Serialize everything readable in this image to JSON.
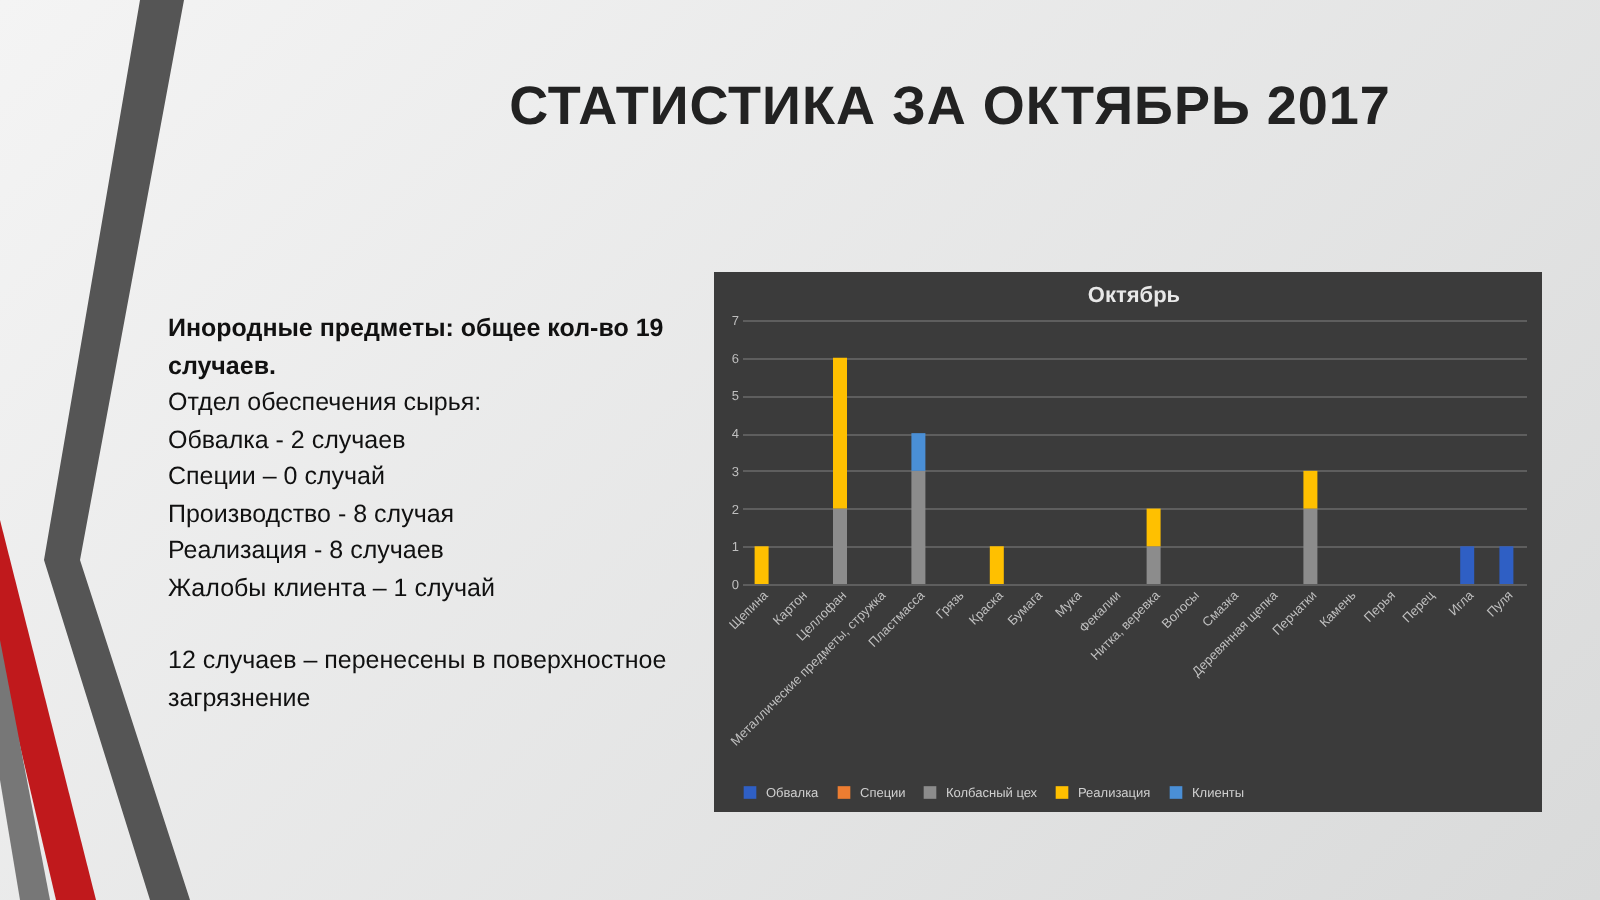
{
  "chart_data": {
    "type": "bar",
    "stacked": true,
    "title": "СТАТИСТИКА ЗА ОКТЯБРЬ 2017",
    "subtitle": "Октябрь",
    "annotations": [
      "Инородные предметы: общее кол-во 19 случаев.",
      "Отдел обеспечения сырья:",
      "Обвалка - 2 случаев",
      "Специи – 0 случай",
      "Производство - 8 случая",
      "Реализация - 8 случаев",
      "Жалобы клиента – 1 случай",
      "12 случаев – перенесены в поверхностное загрязнение"
    ],
    "categories": [
      "Щепина",
      "Картон",
      "Целлофан",
      "Металлические предметы, стружка",
      "Пластмасса",
      "Грязь",
      "Краска",
      "Бумага",
      "Мука",
      "Фекалии",
      "Нитка, веревка",
      "Волосы",
      "Смазка",
      "Деревянная щепка",
      "Перчатки",
      "Камень",
      "Перья",
      "Перец",
      "Игла",
      "Пуля"
    ],
    "series": [
      {
        "name": "Обвалка",
        "color": "#2f5fc4",
        "values": [
          null,
          null,
          null,
          null,
          null,
          null,
          null,
          null,
          null,
          null,
          null,
          null,
          null,
          null,
          null,
          null,
          null,
          null,
          1,
          1
        ]
      },
      {
        "name": "Специи",
        "color": "#ed7d31",
        "values": [
          null,
          null,
          null,
          null,
          null,
          null,
          null,
          null,
          null,
          null,
          null,
          null,
          null,
          null,
          null,
          null,
          null,
          null,
          null,
          null
        ]
      },
      {
        "name": "Колбасный цех",
        "color": "#8c8c8c",
        "values": [
          null,
          null,
          2,
          null,
          3,
          null,
          null,
          null,
          null,
          null,
          1,
          null,
          null,
          null,
          2,
          null,
          null,
          null,
          null,
          null
        ]
      },
      {
        "name": "Реализация",
        "color": "#ffc000",
        "values": [
          1,
          null,
          4,
          null,
          null,
          null,
          1,
          null,
          null,
          null,
          1,
          null,
          null,
          null,
          1,
          null,
          null,
          null,
          null,
          null
        ]
      },
      {
        "name": "Клиенты",
        "color": "#4a8fd6",
        "values": [
          null,
          null,
          null,
          null,
          1,
          null,
          null,
          null,
          null,
          null,
          null,
          null,
          null,
          null,
          null,
          null,
          null,
          null,
          null,
          null
        ]
      }
    ],
    "ylim": [
      0,
      7
    ],
    "yticks": [
      0,
      1,
      2,
      3,
      4,
      5,
      6,
      7
    ],
    "grid": "y",
    "legend": "bottom"
  }
}
